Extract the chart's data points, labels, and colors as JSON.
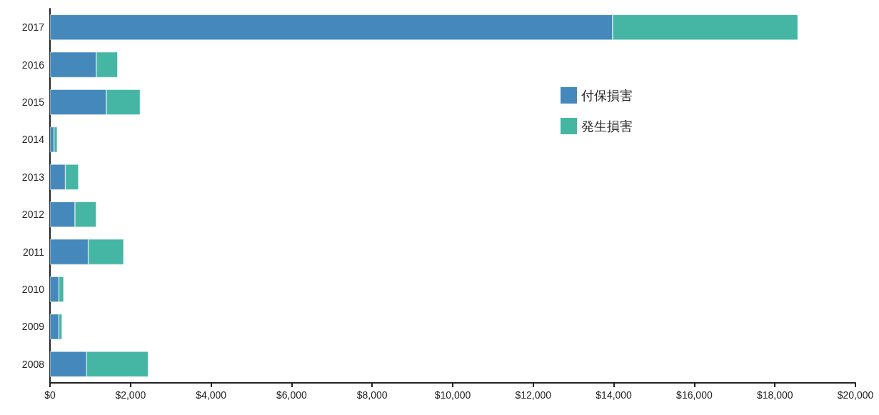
{
  "chart_data": {
    "type": "bar",
    "orientation": "horizontal",
    "stacked": true,
    "categories": [
      "2017",
      "2016",
      "2015",
      "2014",
      "2013",
      "2012",
      "2011",
      "2010",
      "2009",
      "2008"
    ],
    "series": [
      {
        "name": "付保損害",
        "color": "#4589bc",
        "values": [
          13970,
          1150,
          1400,
          100,
          380,
          620,
          950,
          220,
          220,
          910
        ]
      },
      {
        "name": "発生損害",
        "color": "#45b6a4",
        "values": [
          4600,
          530,
          840,
          80,
          330,
          530,
          880,
          120,
          80,
          1530
        ]
      }
    ],
    "xlim": [
      0,
      20000
    ],
    "xticks": [
      {
        "value": 0,
        "label": "$0"
      },
      {
        "value": 2000,
        "label": "$2,000"
      },
      {
        "value": 4000,
        "label": "$4,000"
      },
      {
        "value": 6000,
        "label": "$6,000"
      },
      {
        "value": 8000,
        "label": "$8,000"
      },
      {
        "value": 10000,
        "label": "$10,000"
      },
      {
        "value": 12000,
        "label": "$12,000"
      },
      {
        "value": 14000,
        "label": "$14,000"
      },
      {
        "value": 16000,
        "label": "$16,000"
      },
      {
        "value": 18000,
        "label": "$18,000"
      },
      {
        "value": 20000,
        "label": "$20,000"
      }
    ],
    "grid": false,
    "legend": "right"
  }
}
